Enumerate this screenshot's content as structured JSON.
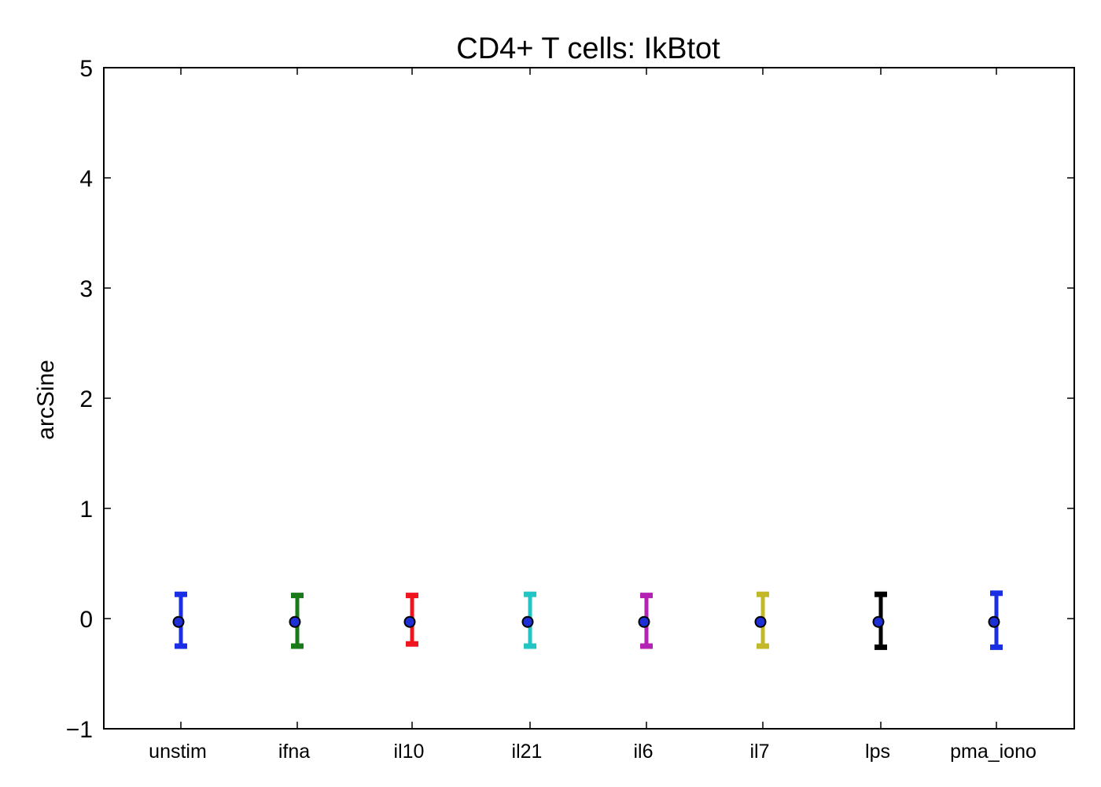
{
  "chart_data": {
    "type": "scatter",
    "title": "CD4+ T cells: IkBtot",
    "xlabel": "",
    "ylabel": "arcSine",
    "ylim": [
      -1,
      5
    ],
    "yticks": [
      5,
      4,
      3,
      2,
      1,
      0,
      -1
    ],
    "ytick_labels": [
      "5",
      "4",
      "3",
      "2",
      "1",
      "0",
      "−1"
    ],
    "grid": false,
    "marker_color": "#1f2fd6",
    "categories": [
      "unstim",
      "ifna",
      "il10",
      "il21",
      "il6",
      "il7",
      "lps",
      "pma_iono"
    ],
    "points": [
      {
        "category": "unstim",
        "mean": -0.03,
        "lower": -0.25,
        "upper": 0.22,
        "color": "#1a2ee6"
      },
      {
        "category": "ifna",
        "mean": -0.03,
        "lower": -0.25,
        "upper": 0.21,
        "color": "#1a7a1a"
      },
      {
        "category": "il10",
        "mean": -0.03,
        "lower": -0.23,
        "upper": 0.21,
        "color": "#f0141e"
      },
      {
        "category": "il21",
        "mean": -0.03,
        "lower": -0.25,
        "upper": 0.22,
        "color": "#22c4c4"
      },
      {
        "category": "il6",
        "mean": -0.03,
        "lower": -0.25,
        "upper": 0.21,
        "color": "#b422b4"
      },
      {
        "category": "il7",
        "mean": -0.03,
        "lower": -0.25,
        "upper": 0.22,
        "color": "#c2b828"
      },
      {
        "category": "lps",
        "mean": -0.03,
        "lower": -0.26,
        "upper": 0.22,
        "color": "#000000"
      },
      {
        "category": "pma_iono",
        "mean": -0.03,
        "lower": -0.26,
        "upper": 0.23,
        "color": "#1a2ee6"
      }
    ]
  }
}
